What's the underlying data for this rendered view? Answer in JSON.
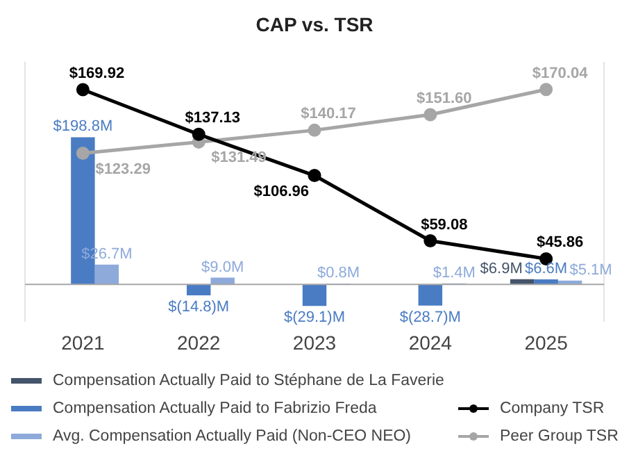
{
  "chart_data": {
    "type": "bar",
    "title": "CAP vs. TSR",
    "categories": [
      "2021",
      "2022",
      "2023",
      "2024",
      "2025"
    ],
    "series": [
      {
        "name": "Compensation Actually Paid to Stéphane de La Faverie",
        "color": "#44546a",
        "values": [
          null,
          null,
          null,
          null,
          6.9
        ],
        "value_labels": [
          null,
          null,
          null,
          null,
          "$6.9M"
        ]
      },
      {
        "name": "Compensation Actually Paid to Fabrizio Freda",
        "color": "#4a7cc4",
        "values": [
          198.8,
          -14.8,
          -29.1,
          -28.7,
          6.6
        ],
        "value_labels": [
          "$198.8M",
          "$(14.8)M",
          "$(29.1)M",
          "$(28.7)M",
          "$6.6M"
        ]
      },
      {
        "name": "Avg. Compensation Actually Paid (Non-CEO NEO)",
        "color": "#8eaadb",
        "values": [
          26.7,
          9.0,
          0.8,
          1.4,
          5.1
        ],
        "value_labels": [
          "$26.7M",
          "$9.0M",
          "$0.8M",
          "$1.4M",
          "$5.1M"
        ]
      },
      {
        "name": "Company TSR",
        "type": "line",
        "axis": "y2",
        "color": "#000000",
        "values": [
          169.92,
          137.13,
          106.96,
          59.08,
          45.86
        ],
        "value_labels": [
          "$169.92",
          "$137.13",
          "$106.96",
          "$59.08",
          "$45.86"
        ]
      },
      {
        "name": "Peer Group TSR",
        "type": "line",
        "axis": "y2",
        "color": "#a6a6a6",
        "values": [
          123.29,
          131.49,
          140.17,
          151.6,
          170.04
        ],
        "value_labels": [
          "$123.29",
          "$131.49",
          "$140.17",
          "$151.60",
          "$170.04"
        ]
      }
    ],
    "ylim": [
      -50,
      300
    ],
    "y2lim": [
      0,
      190
    ],
    "tick_labels": "x",
    "grid": false,
    "legend": "bottom",
    "marker": "circle",
    "line_style": "solid"
  }
}
